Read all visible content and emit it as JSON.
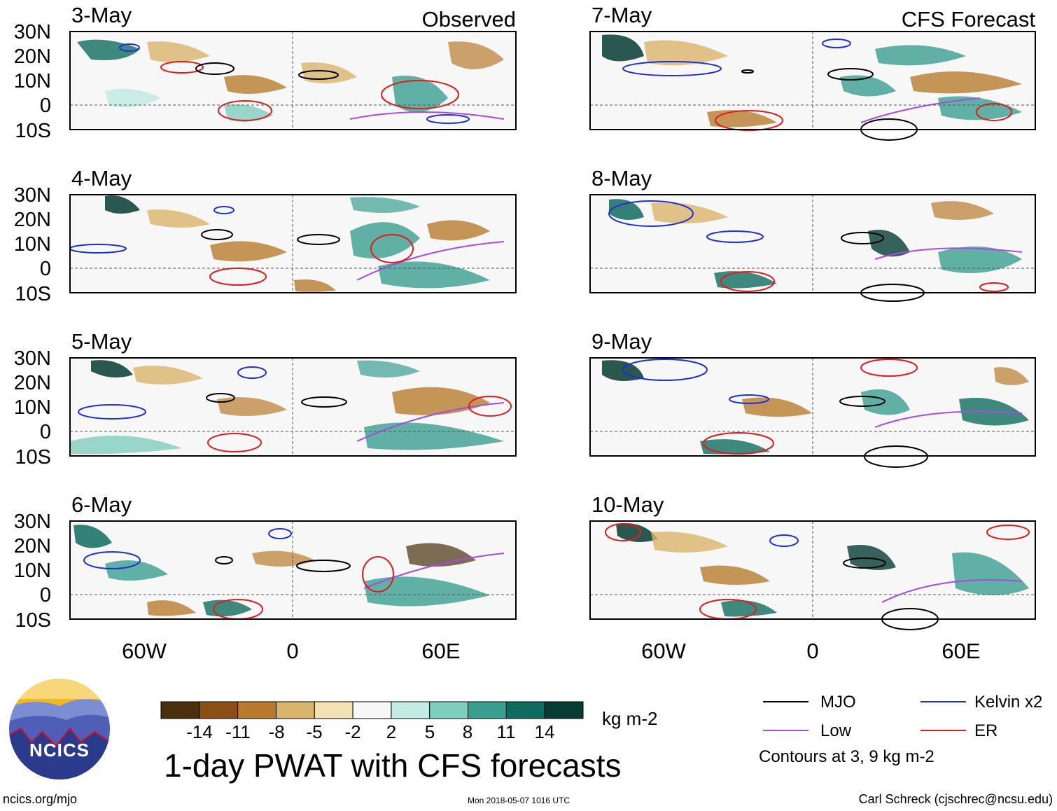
{
  "header": {
    "observed_label": "Observed",
    "forecast_label": "CFS Forecast"
  },
  "panels": {
    "observed": [
      {
        "date": "3-May"
      },
      {
        "date": "4-May"
      },
      {
        "date": "5-May"
      },
      {
        "date": "6-May"
      }
    ],
    "forecast": [
      {
        "date": "7-May"
      },
      {
        "date": "8-May"
      },
      {
        "date": "9-May"
      },
      {
        "date": "10-May"
      }
    ]
  },
  "axes": {
    "lat_labels": [
      "30N",
      "20N",
      "10N",
      "0",
      "10S"
    ],
    "lon_labels": [
      "60W",
      "0",
      "60E"
    ]
  },
  "colorbar": {
    "tick_labels": [
      "-14",
      "-11",
      "-8",
      "-5",
      "-2",
      "2",
      "5",
      "8",
      "11",
      "14"
    ],
    "colors": [
      "#4a2f0e",
      "#8a4f14",
      "#b87a2e",
      "#d9b46c",
      "#f1e1b5",
      "#f7f7f7",
      "#c3ebe3",
      "#7fcdbe",
      "#3a9e90",
      "#0f6b5f",
      "#063c34"
    ],
    "unit": "kg m-2"
  },
  "legend": {
    "items": [
      {
        "label": "MJO",
        "color": "#000000"
      },
      {
        "label": "Kelvin x2",
        "color": "#1f2fd6"
      },
      {
        "label": "Low",
        "color": "#a64ce0"
      },
      {
        "label": "ER",
        "color": "#e01b1b"
      }
    ],
    "contour_note": "Contours at 3, 9 kg m-2"
  },
  "title": "1-day PWAT with CFS forecasts",
  "footer": {
    "url": "ncics.org/mjo",
    "timestamp": "Mon 2018-05-07 1016 UTC",
    "credit": "Carl Schreck (cjschrec@ncsu.edu)"
  },
  "logo": {
    "text": "NCICS"
  }
}
